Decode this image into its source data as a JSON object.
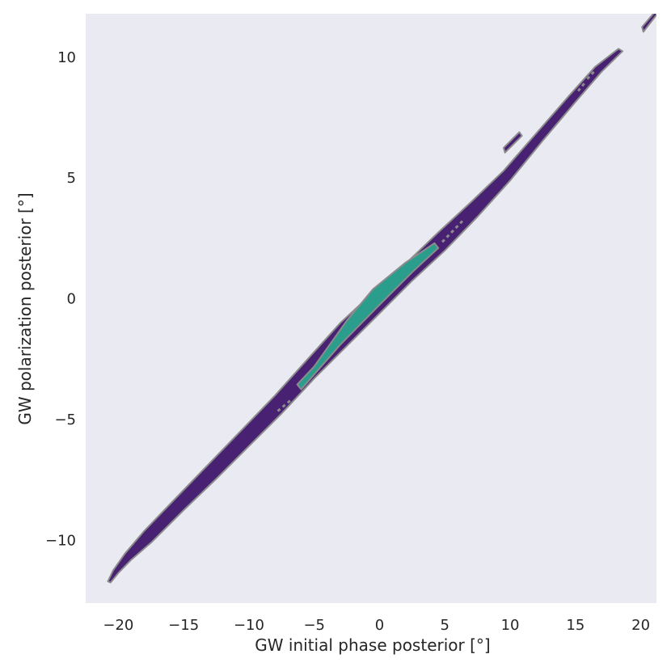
{
  "chart_data": {
    "type": "contour",
    "xlabel": "GW initial phase posterior [°]",
    "ylabel": "GW polarization posterior [°]",
    "xlim": [
      -22.5,
      21.2
    ],
    "ylim": [
      -12.6,
      11.8
    ],
    "xticks": [
      -20,
      -15,
      -10,
      -5,
      0,
      5,
      10,
      15,
      20
    ],
    "yticks": [
      -10,
      -5,
      0,
      5,
      10
    ],
    "xtick_labels": [
      "−20",
      "−15",
      "−10",
      "−5",
      "0",
      "5",
      "10",
      "15",
      "20"
    ],
    "ytick_labels": [
      "−10",
      "−5",
      "0",
      "5",
      "10"
    ],
    "grid": false,
    "colors": {
      "background": "#EAEAF2",
      "outer_region": "#482173",
      "inner_region": "#2A9D8C",
      "contour_line": "#8C8C8C",
      "text": "#262626"
    },
    "regions": [
      {
        "level": "outer",
        "polygon": [
          [
            -20.6,
            -11.75
          ],
          [
            -20.0,
            -11.35
          ],
          [
            -19.0,
            -10.8
          ],
          [
            -17.5,
            -10.1
          ],
          [
            -15.0,
            -8.75
          ],
          [
            -12.5,
            -7.45
          ],
          [
            -10.0,
            -6.1
          ],
          [
            -7.5,
            -4.75
          ],
          [
            -5.0,
            -3.3
          ],
          [
            -2.5,
            -1.95
          ],
          [
            0.0,
            -0.6
          ],
          [
            2.5,
            0.75
          ],
          [
            5.0,
            2.0
          ],
          [
            7.5,
            3.4
          ],
          [
            10.0,
            4.9
          ],
          [
            12.5,
            6.55
          ],
          [
            15.0,
            8.15
          ],
          [
            17.0,
            9.4
          ],
          [
            18.6,
            10.25
          ],
          [
            18.3,
            10.35
          ],
          [
            16.5,
            9.6
          ],
          [
            14.5,
            8.4
          ],
          [
            12.0,
            6.85
          ],
          [
            9.5,
            5.3
          ],
          [
            7.0,
            4.0
          ],
          [
            4.5,
            2.75
          ],
          [
            2.0,
            1.45
          ],
          [
            -0.5,
            0.25
          ],
          [
            -3.0,
            -1.0
          ],
          [
            -5.5,
            -2.5
          ],
          [
            -8.0,
            -4.0
          ],
          [
            -10.5,
            -5.4
          ],
          [
            -13.0,
            -6.8
          ],
          [
            -15.5,
            -8.2
          ],
          [
            -18.0,
            -9.6
          ],
          [
            -19.5,
            -10.55
          ],
          [
            -20.4,
            -11.25
          ],
          [
            -20.8,
            -11.7
          ]
        ]
      },
      {
        "level": "inner",
        "polygon": [
          [
            -6.0,
            -3.75
          ],
          [
            -3.0,
            -1.9
          ],
          [
            0.0,
            -0.25
          ],
          [
            2.5,
            1.1
          ],
          [
            4.5,
            2.1
          ],
          [
            4.2,
            2.3
          ],
          [
            2.0,
            1.5
          ],
          [
            -0.5,
            0.4
          ],
          [
            -2.5,
            -0.9
          ],
          [
            -5.0,
            -2.8
          ],
          [
            -6.3,
            -3.55
          ]
        ]
      },
      {
        "level": "outer",
        "polygon": [
          [
            9.6,
            6.05
          ],
          [
            10.9,
            6.75
          ],
          [
            10.7,
            6.9
          ],
          [
            9.5,
            6.25
          ]
        ]
      },
      {
        "level": "outer",
        "polygon": [
          [
            20.2,
            11.05
          ],
          [
            21.2,
            11.75
          ],
          [
            21.2,
            11.95
          ],
          [
            20.1,
            11.25
          ]
        ]
      }
    ],
    "outlier_segments": [
      [
        [
          15.2,
          8.6
        ],
        [
          15.8,
          9.0
        ]
      ],
      [
        [
          15.9,
          9.1
        ],
        [
          16.5,
          9.45
        ]
      ],
      [
        [
          -7.8,
          -4.65
        ],
        [
          -6.8,
          -4.2
        ]
      ],
      [
        [
          4.8,
          2.35
        ],
        [
          6.4,
          3.25
        ]
      ]
    ]
  }
}
